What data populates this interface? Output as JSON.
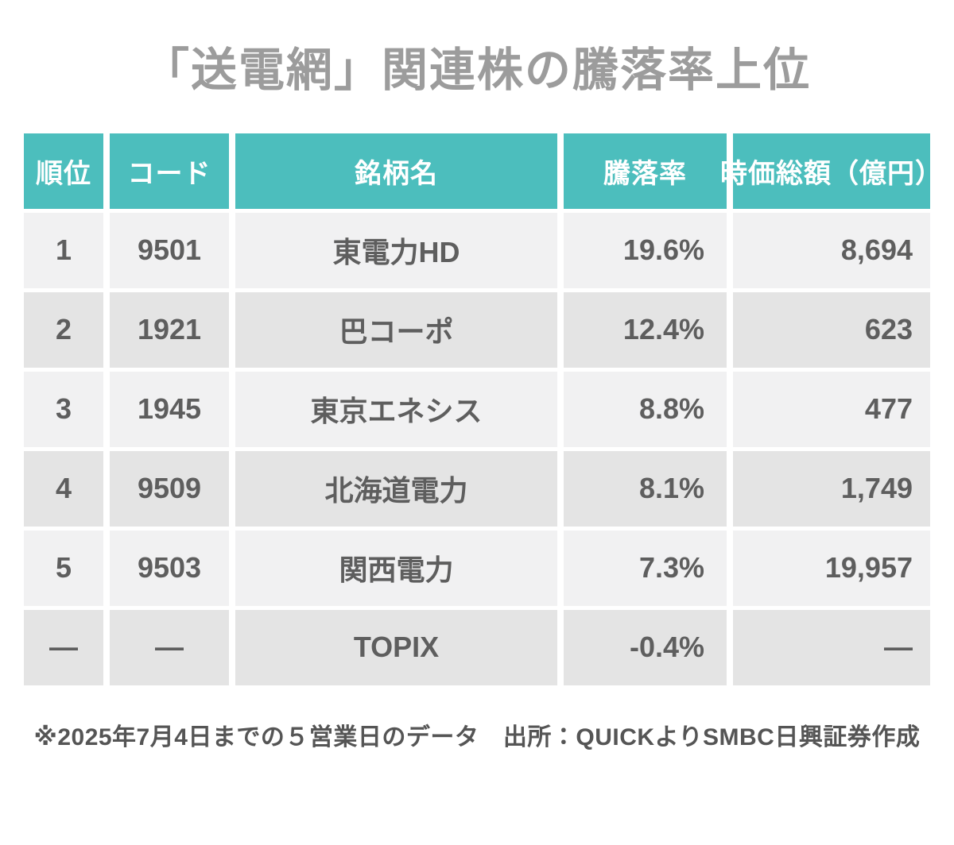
{
  "page": {
    "title": "「送電網」関連株の騰落率上位",
    "footnote": "※2025年7月4日までの５営業日のデータ　出所：QUICKよりSMBC日興証券作成"
  },
  "colors": {
    "header_bg": "#4CBEBD",
    "header_text": "#FFFFFF",
    "row_light": "#F1F1F2",
    "row_dark": "#E4E4E4",
    "data_text": "#5E5E5E",
    "title_text": "#9C9C9C",
    "note_text": "#555555",
    "page_bg": "#FFFFFF"
  },
  "chart_data": {
    "type": "table",
    "title": "「送電網」関連株の騰落率上位",
    "columns": [
      "順位",
      "コード",
      "銘柄名",
      "騰落率",
      "時価総額（億円）"
    ],
    "rows": [
      [
        "1",
        "9501",
        "東電力HD",
        "19.6%",
        "8,694"
      ],
      [
        "2",
        "1921",
        "巴コーポ",
        "12.4%",
        "623"
      ],
      [
        "3",
        "1945",
        "東京エネシス",
        "8.8%",
        "477"
      ],
      [
        "4",
        "9509",
        "北海道電力",
        "8.1%",
        "1,749"
      ],
      [
        "5",
        "9503",
        "関西電力",
        "7.3%",
        "19,957"
      ],
      [
        "—",
        "—",
        "TOPIX",
        "-0.4%",
        "—"
      ]
    ],
    "note": "※2025年7月4日までの５営業日のデータ　出所：QUICKよりSMBC日興証券作成",
    "layout": {
      "header_align": "center",
      "column_align": [
        "center",
        "center",
        "center",
        "right",
        "right"
      ],
      "alternating_rows": true
    }
  }
}
